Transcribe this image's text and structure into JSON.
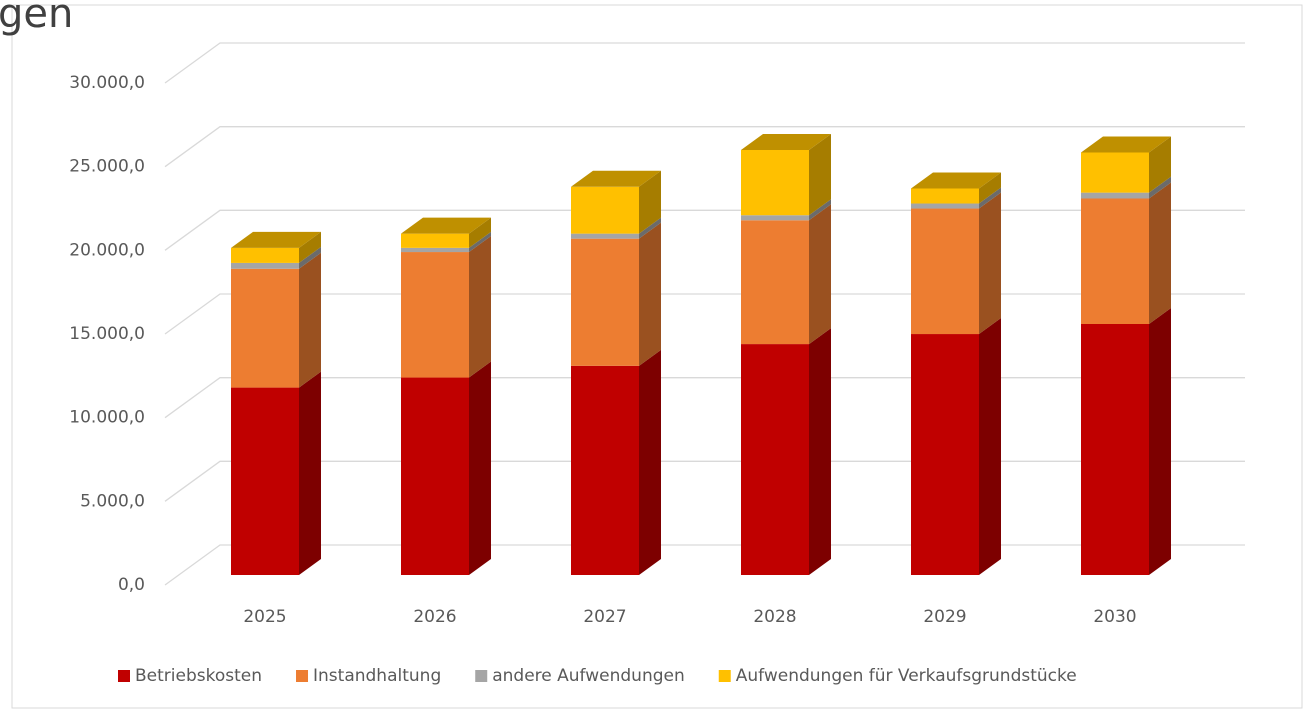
{
  "heading_fragment": "gen",
  "chart_data": {
    "type": "bar3d_stacked",
    "categories": [
      "2025",
      "2026",
      "2027",
      "2028",
      "2029",
      "2030"
    ],
    "series": [
      {
        "name": "Betriebskosten",
        "color": "#c00000",
        "values": [
          11200,
          11800,
          12500,
          13800,
          14400,
          15000
        ]
      },
      {
        "name": "Instandhaltung",
        "color": "#ed7d31",
        "values": [
          7100,
          7500,
          7600,
          7400,
          7500,
          7500
        ]
      },
      {
        "name": "andere Aufwendungen",
        "color": "#a5a5a5",
        "values": [
          350,
          250,
          300,
          300,
          300,
          350
        ]
      },
      {
        "name": "Aufwendungen für Verkaufsgrundstücke",
        "color": "#ffc000",
        "values": [
          900,
          850,
          2800,
          3900,
          900,
          2400
        ]
      }
    ],
    "ylim": [
      0,
      30000
    ],
    "yticks": [
      {
        "value": 0,
        "label": "0,0"
      },
      {
        "value": 5000,
        "label": "5.000,0"
      },
      {
        "value": 10000,
        "label": "10.000,0"
      },
      {
        "value": 15000,
        "label": "15.000,0"
      },
      {
        "value": 20000,
        "label": "20.000,0"
      },
      {
        "value": 25000,
        "label": "25.000,0"
      },
      {
        "value": 30000,
        "label": "30.000,0"
      }
    ],
    "grid": true,
    "legend": "bottom"
  }
}
